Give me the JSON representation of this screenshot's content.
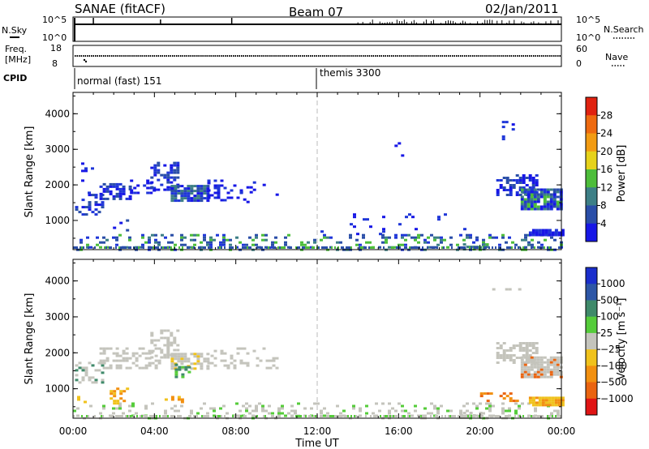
{
  "header": {
    "title": "SANAE (fitACF)",
    "beam": "Beam 07",
    "date": "02/Jan/2011"
  },
  "top_panels": {
    "nsky_label": "N.Sky",
    "nsky_ticks": [
      "10^5",
      "10^0"
    ],
    "nsearch_label": "N.Search",
    "nsearch_ticks": [
      "10^5",
      "10^0"
    ],
    "freq_label_1": "Freq.",
    "freq_label_2": "[MHz]",
    "freq_ticks": [
      "18",
      "8"
    ],
    "nave_label": "Nave",
    "nave_ticks": [
      "60",
      "0"
    ],
    "cpid_label": "CPID",
    "cpid_segments": [
      {
        "name": "normal (fast) 151",
        "start_hour": 0
      },
      {
        "name": "themis 3300",
        "start_hour": 12
      }
    ]
  },
  "chart_data": [
    {
      "type": "heatmap",
      "name": "power",
      "ylabel": "Slant Range [km]",
      "yticks": [
        "1000",
        "2000",
        "3000",
        "4000"
      ],
      "ylim": [
        180,
        4600
      ],
      "xlim": [
        0,
        24
      ],
      "colorbar_label": "Power [dB]",
      "colorbar_ticks": [
        "4",
        "8",
        "12",
        "16",
        "20",
        "24",
        "28"
      ],
      "colorbar_colors": [
        "#1717e6",
        "#2a4ea8",
        "#3d7f86",
        "#4dbd3a",
        "#e6d21a",
        "#f29b12",
        "#ee6a10",
        "#e02210"
      ],
      "regions": [
        {
          "h0": 0.0,
          "h1": 24.0,
          "r0": 190,
          "r1": 620,
          "d": 0.26,
          "c": [
            "#1f36d8",
            "#2a4ea8",
            "#2a4ea8",
            "#3d7f86",
            "#4dbd3a"
          ]
        },
        {
          "h0": 0.1,
          "h1": 1.4,
          "r0": 1150,
          "r1": 1750,
          "d": 0.4,
          "c": [
            "#1717e6",
            "#1f36d8",
            "#2a4ea8"
          ]
        },
        {
          "h0": 0.4,
          "h1": 1.0,
          "r0": 1800,
          "r1": 2700,
          "d": 0.12,
          "c": [
            "#1717e6",
            "#1f36d8"
          ]
        },
        {
          "h0": 1.3,
          "h1": 2.8,
          "r0": 1600,
          "r1": 2050,
          "d": 0.55,
          "c": [
            "#1717e6",
            "#1f36d8",
            "#2a4ea8"
          ]
        },
        {
          "h0": 2.8,
          "h1": 4.2,
          "r0": 1750,
          "r1": 2150,
          "d": 0.35,
          "c": [
            "#1717e6",
            "#1f36d8"
          ]
        },
        {
          "h0": 3.8,
          "h1": 5.2,
          "r0": 1850,
          "r1": 2650,
          "d": 0.45,
          "c": [
            "#1717e6",
            "#1f36d8",
            "#2a4ea8"
          ]
        },
        {
          "h0": 4.8,
          "h1": 6.6,
          "r0": 1550,
          "r1": 2000,
          "d": 0.75,
          "c": [
            "#1717e6",
            "#1f36d8",
            "#2a4ea8",
            "#3d7f86"
          ]
        },
        {
          "h0": 6.6,
          "h1": 8.2,
          "r0": 1600,
          "r1": 2150,
          "d": 0.3,
          "c": [
            "#1717e6",
            "#1f36d8"
          ]
        },
        {
          "h0": 8.2,
          "h1": 10.0,
          "r0": 1550,
          "r1": 2100,
          "d": 0.1,
          "c": [
            "#1717e6",
            "#1f36d8"
          ]
        },
        {
          "h0": 1.8,
          "h1": 2.6,
          "r0": 600,
          "r1": 1100,
          "d": 0.2,
          "c": [
            "#1717e6",
            "#2a4ea8"
          ]
        },
        {
          "h0": 12.0,
          "h1": 20.0,
          "r0": 620,
          "r1": 1200,
          "d": 0.03,
          "c": [
            "#1717e6",
            "#1f36d8"
          ]
        },
        {
          "h0": 15.8,
          "h1": 16.4,
          "r0": 2800,
          "r1": 3200,
          "d": 0.1,
          "c": [
            "#1717e6"
          ]
        },
        {
          "h0": 20.6,
          "h1": 22.0,
          "r0": 3300,
          "r1": 3800,
          "d": 0.1,
          "c": [
            "#1717e6",
            "#1f36d8"
          ]
        },
        {
          "h0": 20.8,
          "h1": 22.8,
          "r0": 1700,
          "r1": 2300,
          "d": 0.55,
          "c": [
            "#1717e6",
            "#1f36d8",
            "#2a4ea8"
          ]
        },
        {
          "h0": 22.0,
          "h1": 24.0,
          "r0": 1350,
          "r1": 1900,
          "d": 0.85,
          "c": [
            "#1717e6",
            "#1f36d8",
            "#2a4ea8",
            "#3d7f86",
            "#4dbd3a"
          ]
        },
        {
          "h0": 22.4,
          "h1": 24.0,
          "r0": 580,
          "r1": 760,
          "d": 0.9,
          "c": [
            "#1717e6",
            "#1f36d8"
          ]
        },
        {
          "h0": 19.0,
          "h1": 20.4,
          "r0": 180,
          "r1": 360,
          "d": 0.55,
          "c": [
            "#3d7f86",
            "#4dbd3a",
            "#2a4ea8"
          ]
        }
      ]
    },
    {
      "type": "heatmap",
      "name": "velocity",
      "ylabel": "Slant Range [km]",
      "yticks": [
        "1000",
        "2000",
        "3000",
        "4000"
      ],
      "ylim": [
        180,
        4600
      ],
      "xlim": [
        0,
        24
      ],
      "xlabel": "Time UT",
      "xticks": [
        "00:00",
        "04:00",
        "08:00",
        "12:00",
        "16:00",
        "20:00",
        "00:00"
      ],
      "colorbar_label": "Velocity [m s⁻¹]",
      "colorbar_ticks": [
        "1000",
        "500",
        "100",
        "25",
        "−25",
        "−100",
        "−500",
        "−1000"
      ],
      "colorbar_colors": [
        "#1a2ecc",
        "#2d56a6",
        "#3f8a6a",
        "#55cc3a",
        "#c4c4bc",
        "#f0c21c",
        "#f29010",
        "#ea6410",
        "#e01414"
      ],
      "regions": [
        {
          "h0": 0.0,
          "h1": 24.0,
          "r0": 190,
          "r1": 620,
          "d": 0.22,
          "c": [
            "#c4c4bc",
            "#c4c4bc",
            "#55cc3a",
            "#c4c4bc"
          ]
        },
        {
          "h0": 0.1,
          "h1": 1.4,
          "r0": 1150,
          "r1": 1750,
          "d": 0.4,
          "c": [
            "#c4c4bc",
            "#c4c4bc",
            "#3f8a6a"
          ]
        },
        {
          "h0": 1.3,
          "h1": 4.2,
          "r0": 1600,
          "r1": 2150,
          "d": 0.45,
          "c": [
            "#c4c4bc"
          ]
        },
        {
          "h0": 3.8,
          "h1": 5.2,
          "r0": 1850,
          "r1": 2650,
          "d": 0.45,
          "c": [
            "#c4c4bc"
          ]
        },
        {
          "h0": 4.8,
          "h1": 6.6,
          "r0": 1550,
          "r1": 2000,
          "d": 0.7,
          "c": [
            "#c4c4bc",
            "#c4c4bc",
            "#f0c21c"
          ]
        },
        {
          "h0": 5.0,
          "h1": 5.7,
          "r0": 1300,
          "r1": 1700,
          "d": 0.55,
          "c": [
            "#55cc3a",
            "#3f8a6a"
          ]
        },
        {
          "h0": 6.6,
          "h1": 10.0,
          "r0": 1550,
          "r1": 2150,
          "d": 0.25,
          "c": [
            "#c4c4bc"
          ]
        },
        {
          "h0": 1.8,
          "h1": 2.6,
          "r0": 600,
          "r1": 1100,
          "d": 0.25,
          "c": [
            "#f29010",
            "#f0c21c"
          ]
        },
        {
          "h0": 0.2,
          "h1": 0.8,
          "r0": 600,
          "r1": 800,
          "d": 0.3,
          "c": [
            "#f0c21c"
          ]
        },
        {
          "h0": 4.5,
          "h1": 5.3,
          "r0": 600,
          "r1": 800,
          "d": 0.25,
          "c": [
            "#f0c21c",
            "#f29010"
          ]
        },
        {
          "h0": 20.6,
          "h1": 22.0,
          "r0": 3300,
          "r1": 3800,
          "d": 0.1,
          "c": [
            "#c4c4bc"
          ]
        },
        {
          "h0": 20.8,
          "h1": 22.8,
          "r0": 1700,
          "r1": 2300,
          "d": 0.55,
          "c": [
            "#c4c4bc"
          ]
        },
        {
          "h0": 22.0,
          "h1": 24.0,
          "r0": 1350,
          "r1": 1900,
          "d": 0.85,
          "c": [
            "#c4c4bc",
            "#c4c4bc",
            "#c4c4bc",
            "#ea6410"
          ]
        },
        {
          "h0": 22.4,
          "h1": 24.0,
          "r0": 560,
          "r1": 780,
          "d": 0.9,
          "c": [
            "#f0c21c",
            "#f0c21c",
            "#f29010"
          ]
        },
        {
          "h0": 20.0,
          "h1": 21.8,
          "r0": 650,
          "r1": 900,
          "d": 0.35,
          "c": [
            "#f29010",
            "#ea6410"
          ]
        },
        {
          "h0": 19.0,
          "h1": 20.4,
          "r0": 180,
          "r1": 360,
          "d": 0.45,
          "c": [
            "#c4c4bc"
          ]
        }
      ]
    }
  ]
}
